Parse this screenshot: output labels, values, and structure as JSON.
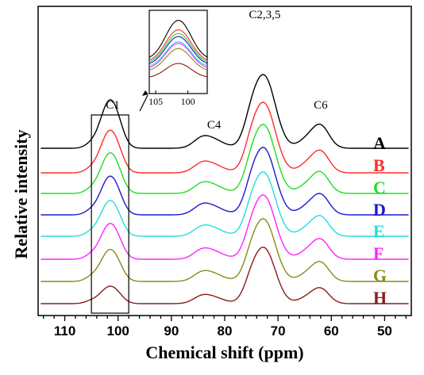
{
  "chart_data": {
    "type": "line",
    "title": "",
    "xlabel": "Chemical shift (ppm)",
    "ylabel": "Relative intensity",
    "xlim": [
      115,
      45
    ],
    "x_reversed": true,
    "x_ticks": [
      110,
      100,
      90,
      80,
      70,
      60,
      50
    ],
    "y_ticks": false,
    "grid": false,
    "legend": "right, series labels placed beside each curve",
    "stacked_offset": true,
    "peak_labels": [
      {
        "text": "C1",
        "x": 101
      },
      {
        "text": "C4",
        "x": 82
      },
      {
        "text": "C2,3,5",
        "x": 72.5
      },
      {
        "text": "C6",
        "x": 62
      }
    ],
    "inset": {
      "x_ticks": [
        105,
        100
      ],
      "xlim": [
        106,
        97
      ],
      "source_box": [
        105,
        98
      ]
    },
    "series": [
      {
        "name": "A",
        "color": "#000000",
        "peaks": {
          "C1": 1.0,
          "C1b": 0.55,
          "C4": 0.3,
          "C235": 2.35,
          "C6": 0.72
        }
      },
      {
        "name": "B",
        "color": "#ff2a2a",
        "peaks": {
          "C1": 0.88,
          "C1b": 0.55,
          "C4": 0.28,
          "C235": 2.25,
          "C6": 0.68
        }
      },
      {
        "name": "C",
        "color": "#22dd22",
        "peaks": {
          "C1": 0.84,
          "C1b": 0.55,
          "C4": 0.28,
          "C235": 2.2,
          "C6": 0.66
        }
      },
      {
        "name": "D",
        "color": "#1a1acc",
        "peaks": {
          "C1": 0.8,
          "C1b": 0.55,
          "C4": 0.28,
          "C235": 2.15,
          "C6": 0.64
        }
      },
      {
        "name": "E",
        "color": "#22dddd",
        "peaks": {
          "C1": 0.74,
          "C1b": 0.55,
          "C4": 0.27,
          "C235": 2.05,
          "C6": 0.62
        }
      },
      {
        "name": "F",
        "color": "#ff22ff",
        "peaks": {
          "C1": 0.74,
          "C1b": 0.55,
          "C4": 0.27,
          "C235": 2.05,
          "C6": 0.62
        }
      },
      {
        "name": "G",
        "color": "#8a8a1a",
        "peaks": {
          "C1": 0.66,
          "C1b": 0.55,
          "C4": 0.26,
          "C235": 2.0,
          "C6": 0.6
        }
      },
      {
        "name": "H",
        "color": "#8b1a1a",
        "peaks": {
          "C1": 0.36,
          "C1b": 0.35,
          "C4": 0.22,
          "C235": 1.8,
          "C6": 0.48
        }
      }
    ]
  }
}
